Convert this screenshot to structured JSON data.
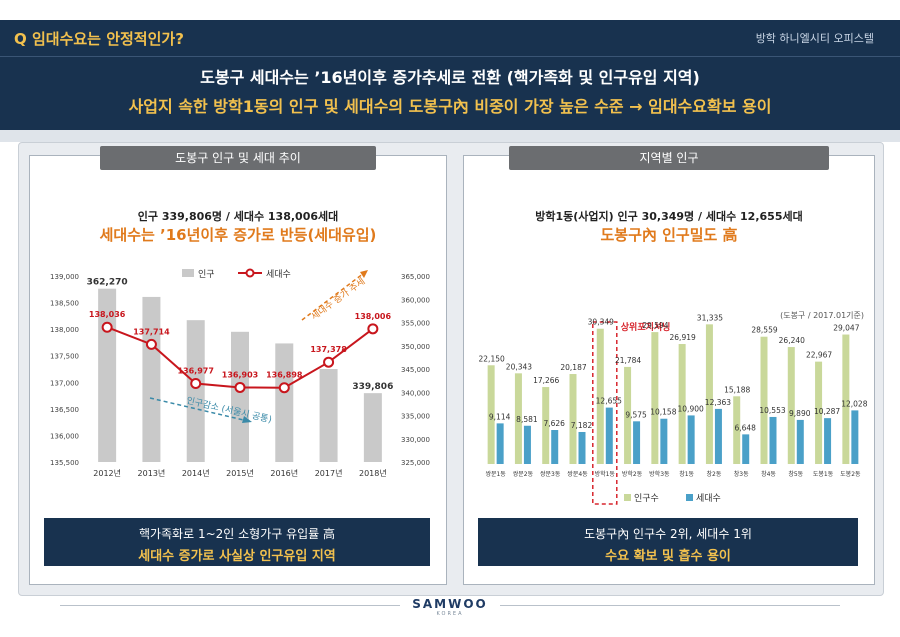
{
  "header": {
    "question": "Q 임대수요는 안정적인가?",
    "subtitle": "방학 하니엘시티 오피스텔",
    "headline1": "도봉구 세대수는 ’16년이후 증가추세로 전환 (핵가족화 및 인구유입 지역)",
    "headline2": "사업지 속한 방학1동의 인구 및 세대수의 도봉구內 비중이 가장 높은 수준 → 임대수요확보 용이"
  },
  "left_panel": {
    "tab": "도봉구 인구 및 세대 추이",
    "summary": "인구 339,806명 / 세대수 138,006세대",
    "highlight": "세대수는 ’16년이후 증가로 반등(세대유입)",
    "footer_line1": "핵가족화로 1~2인 소형가구 유입률 高",
    "footer_line2": "세대수 증가로 사실상 인구유입 지역"
  },
  "right_panel": {
    "tab": "지역별 인구",
    "summary": "방학1동(사업지) 인구 30,349명 / 세대수 12,655세대",
    "highlight": "도봉구內 인구밀도 高",
    "footer_line1": "도봉구內 인구수 2위, 세대수 1위",
    "footer_line2": "수요 확보 및 흡수 용이"
  },
  "logo": {
    "word": "SAMWOO",
    "sub": "KOREA"
  },
  "colors": {
    "navy": "#18324f",
    "gold": "#f2c14e",
    "orange": "#e07a1c",
    "red_line": "#c8161d",
    "gray_bar": "#c9c9c9",
    "green_bar": "#c9d89a",
    "blue_bar": "#4aa0c8",
    "teal_arrow": "#3a8aa8"
  },
  "chart_data": [
    {
      "type": "bar",
      "combo": "bar+line",
      "categories": [
        "2012년",
        "2013년",
        "2014년",
        "2015년",
        "2016년",
        "2017년",
        "2018년"
      ],
      "series": [
        {
          "name": "인구",
          "type": "bar",
          "axis": "right",
          "labels": [
            "362,270",
            "",
            "",
            "",
            "",
            "",
            "339,806"
          ],
          "values": [
            362270,
            360500,
            355500,
            353000,
            350500,
            345000,
            339806
          ]
        },
        {
          "name": "세대수",
          "type": "line",
          "axis": "left",
          "labels": [
            "138,036",
            "137,714",
            "136,977",
            "136,903",
            "136,898",
            "137,378",
            "138,006"
          ],
          "values": [
            138036,
            137714,
            136977,
            136903,
            136898,
            137378,
            138006
          ]
        }
      ],
      "y_left": {
        "ticks": [
          "135,500",
          "136,000",
          "136,500",
          "137,000",
          "137,500",
          "138,000",
          "138,500",
          "139,000"
        ],
        "range": [
          135500,
          139000
        ]
      },
      "y_right": {
        "ticks": [
          "325,000",
          "330,000",
          "335,000",
          "340,000",
          "345,000",
          "350,000",
          "355,000",
          "360,000",
          "365,000"
        ],
        "range": [
          325000,
          365000
        ]
      },
      "annotations": [
        "세대수 증가 추세",
        "인구감소 (서울시 공통)"
      ],
      "legend": "top"
    },
    {
      "type": "bar",
      "categories": [
        "쌍문1동",
        "쌍문2동",
        "쌍문3동",
        "쌍문4동",
        "방학1동",
        "방학2동",
        "방학3동",
        "창1동",
        "창2동",
        "창3동",
        "창4동",
        "창5동",
        "도봉1동",
        "도봉2동"
      ],
      "series": [
        {
          "name": "인구수",
          "labels": [
            "22,150",
            "20,343",
            "17,266",
            "20,187",
            "30,349",
            "21,784",
            "29,594",
            "26,919",
            "31,335",
            "15,188",
            "28,559",
            "26,240",
            "22,967",
            "29,047"
          ],
          "values": [
            22150,
            20343,
            17266,
            20187,
            30349,
            21784,
            29594,
            26919,
            31335,
            15188,
            28559,
            26240,
            22967,
            29047
          ]
        },
        {
          "name": "세대수",
          "labels": [
            "9,114",
            "8,581",
            "7,626",
            "7,182",
            "12,655",
            "9,575",
            "10,158",
            "10,900",
            "12,363",
            "6,648",
            "10,553",
            "9,890",
            "10,287",
            "12,028"
          ],
          "values": [
            9114,
            8581,
            7626,
            7182,
            12655,
            9575,
            10158,
            10900,
            12363,
            6648,
            10553,
            9890,
            10287,
            12028
          ]
        }
      ],
      "note": "(도봉구 / 2017.01기준)",
      "highlight_label": "상위포지셔닝",
      "highlight_index": 4,
      "legend": "bottom"
    }
  ]
}
